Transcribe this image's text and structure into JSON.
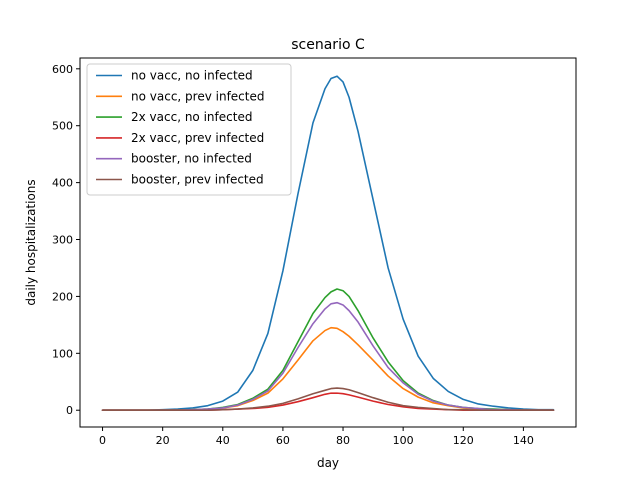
{
  "chart_data": {
    "type": "line",
    "title": "scenario C",
    "xlabel": "day",
    "ylabel": "daily hospitalizations",
    "xlim": [
      -7.5,
      157.5
    ],
    "ylim": [
      -29.5,
      619
    ],
    "xticks": [
      0,
      20,
      40,
      60,
      80,
      100,
      120,
      140
    ],
    "yticks": [
      0,
      100,
      200,
      300,
      400,
      500,
      600
    ],
    "grid": false,
    "legend_position": "upper-left",
    "x": [
      0,
      5,
      10,
      15,
      20,
      25,
      30,
      35,
      40,
      45,
      50,
      55,
      60,
      65,
      70,
      74,
      76,
      78,
      80,
      82,
      85,
      90,
      95,
      100,
      105,
      110,
      115,
      120,
      125,
      130,
      135,
      140,
      145,
      150
    ],
    "series": [
      {
        "name": "no vacc, no infected",
        "color": "#1f77b4",
        "values": [
          0,
          0,
          0,
          0,
          1,
          2,
          4,
          8,
          16,
          32,
          70,
          135,
          245,
          380,
          505,
          565,
          583,
          587,
          577,
          550,
          490,
          370,
          250,
          160,
          95,
          56,
          33,
          19,
          11,
          7,
          4,
          2,
          1,
          1
        ]
      },
      {
        "name": "no vacc, prev infected",
        "color": "#ff7f0e",
        "values": [
          0,
          0,
          0,
          0,
          0,
          0,
          1,
          2,
          4,
          8,
          17,
          30,
          55,
          88,
          122,
          140,
          145,
          144,
          138,
          130,
          115,
          88,
          60,
          38,
          23,
          13,
          8,
          4,
          2,
          1,
          1,
          0,
          0,
          0
        ]
      },
      {
        "name": "2x vacc, no infected",
        "color": "#2ca02c",
        "values": [
          0,
          0,
          0,
          0,
          0,
          0,
          1,
          2,
          5,
          10,
          21,
          37,
          70,
          120,
          170,
          198,
          208,
          213,
          210,
          200,
          175,
          127,
          85,
          52,
          30,
          17,
          9,
          5,
          3,
          2,
          1,
          0,
          0,
          0
        ]
      },
      {
        "name": "2x vacc, prev infected",
        "color": "#d62728",
        "values": [
          0,
          0,
          0,
          0,
          0,
          0,
          0,
          0,
          1,
          2,
          3,
          5,
          9,
          15,
          22,
          28,
          30,
          30,
          29,
          27,
          23,
          16,
          10,
          6,
          3,
          2,
          1,
          0,
          0,
          0,
          0,
          0,
          0,
          0
        ]
      },
      {
        "name": "booster, no infected",
        "color": "#9467bd",
        "values": [
          0,
          0,
          0,
          0,
          0,
          0,
          1,
          2,
          4,
          9,
          19,
          34,
          65,
          110,
          152,
          178,
          187,
          189,
          185,
          175,
          155,
          113,
          75,
          48,
          28,
          16,
          9,
          5,
          3,
          1,
          1,
          0,
          0,
          0
        ]
      },
      {
        "name": "booster, prev infected",
        "color": "#8c564b",
        "values": [
          0,
          0,
          0,
          0,
          0,
          0,
          0,
          0,
          1,
          2,
          4,
          7,
          12,
          20,
          29,
          35,
          38,
          39,
          38,
          36,
          31,
          22,
          14,
          8,
          5,
          3,
          1,
          1,
          0,
          0,
          0,
          0,
          0,
          0
        ]
      }
    ]
  }
}
